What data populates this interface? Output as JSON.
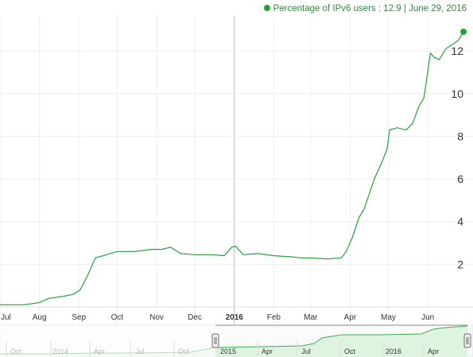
{
  "legend": {
    "series_label": "Percentage of IPv6 users : 12.9",
    "date_label": "| June 29, 2016"
  },
  "colors": {
    "line": "#22a33a",
    "grid": "#eeeeee",
    "axis_text": "#333333",
    "navigator_fill": "#dff3e1",
    "navigator_line": "#3fae4f"
  },
  "chart_data": {
    "type": "line",
    "title": "",
    "xlabel": "",
    "ylabel": "",
    "ylim": [
      0,
      12.9
    ],
    "yticks": [
      2,
      4,
      6,
      8,
      10,
      12
    ],
    "xlim": [
      "2015-07-01",
      "2016-06-29"
    ],
    "x_ticks": [
      {
        "date": "2015-07-01",
        "label": "Jul"
      },
      {
        "date": "2015-08-01",
        "label": "Aug"
      },
      {
        "date": "2015-09-01",
        "label": "Sep"
      },
      {
        "date": "2015-10-01",
        "label": "Oct"
      },
      {
        "date": "2015-11-01",
        "label": "Nov"
      },
      {
        "date": "2015-12-01",
        "label": "Dec"
      },
      {
        "date": "2016-01-01",
        "label": "2016",
        "bold": true
      },
      {
        "date": "2016-02-01",
        "label": "Feb"
      },
      {
        "date": "2016-03-01",
        "label": "Mar"
      },
      {
        "date": "2016-04-01",
        "label": "Apr"
      },
      {
        "date": "2016-05-01",
        "label": "May"
      },
      {
        "date": "2016-06-01",
        "label": "Jun"
      }
    ],
    "series": [
      {
        "points": [
          [
            "2015-07-01",
            0.1
          ],
          [
            "2015-07-20",
            0.1
          ],
          [
            "2015-08-01",
            0.2
          ],
          [
            "2015-08-08",
            0.4
          ],
          [
            "2015-08-20",
            0.5
          ],
          [
            "2015-08-28",
            0.6
          ],
          [
            "2015-09-02",
            0.8
          ],
          [
            "2015-09-08",
            1.5
          ],
          [
            "2015-09-14",
            2.3
          ],
          [
            "2015-09-20",
            2.4
          ],
          [
            "2015-10-01",
            2.6
          ],
          [
            "2015-10-15",
            2.6
          ],
          [
            "2015-10-28",
            2.7
          ],
          [
            "2015-11-05",
            2.7
          ],
          [
            "2015-11-12",
            2.8
          ],
          [
            "2015-11-20",
            2.5
          ],
          [
            "2015-12-01",
            2.45
          ],
          [
            "2015-12-15",
            2.45
          ],
          [
            "2015-12-24",
            2.4
          ],
          [
            "2015-12-30",
            2.8
          ],
          [
            "2016-01-02",
            2.85
          ],
          [
            "2016-01-08",
            2.45
          ],
          [
            "2016-01-20",
            2.5
          ],
          [
            "2016-02-01",
            2.4
          ],
          [
            "2016-02-15",
            2.35
          ],
          [
            "2016-02-22",
            2.3
          ],
          [
            "2016-03-01",
            2.3
          ],
          [
            "2016-03-15",
            2.25
          ],
          [
            "2016-03-25",
            2.3
          ],
          [
            "2016-03-29",
            2.6
          ],
          [
            "2016-04-03",
            3.3
          ],
          [
            "2016-04-08",
            4.2
          ],
          [
            "2016-04-12",
            4.6
          ],
          [
            "2016-04-20",
            6.0
          ],
          [
            "2016-04-26",
            6.8
          ],
          [
            "2016-04-30",
            7.4
          ],
          [
            "2016-05-02",
            8.3
          ],
          [
            "2016-05-08",
            8.4
          ],
          [
            "2016-05-15",
            8.3
          ],
          [
            "2016-05-20",
            8.6
          ],
          [
            "2016-05-25",
            9.4
          ],
          [
            "2016-05-29",
            9.8
          ],
          [
            "2016-06-03",
            11.9
          ],
          [
            "2016-06-06",
            11.7
          ],
          [
            "2016-06-10",
            11.6
          ],
          [
            "2016-06-15",
            12.1
          ],
          [
            "2016-06-20",
            12.3
          ],
          [
            "2016-06-25",
            12.5
          ],
          [
            "2016-06-29",
            12.9
          ]
        ]
      }
    ],
    "navigator": {
      "labels": [
        "Oct",
        "2014",
        "Apr",
        "Jul",
        "Oct",
        "2015",
        "Apr",
        "Jul",
        "Oct",
        "2016",
        "Apr"
      ]
    }
  }
}
